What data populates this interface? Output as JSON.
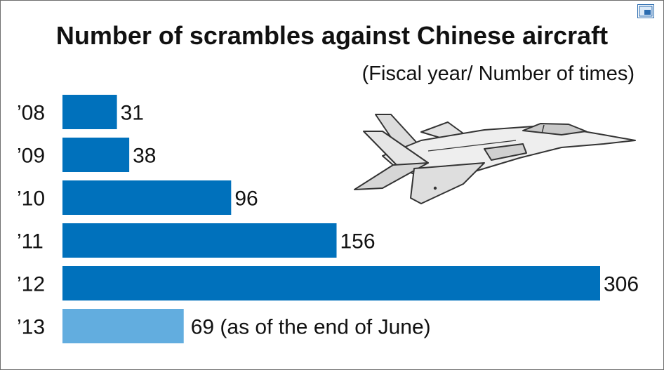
{
  "header": {
    "title": "Number of scrambles against Chinese aircraft",
    "subtitle": "(Fiscal year/ Number of times)"
  },
  "toolbar": {
    "expand_icon": "expand-icon"
  },
  "illustration": {
    "icon": "fighter-jet-icon"
  },
  "colors": {
    "bar": "#0071bc",
    "bar_partial": "#62addf",
    "text": "#111111"
  },
  "chart_data": {
    "type": "bar",
    "orientation": "horizontal",
    "title": "Number of scrambles against Chinese aircraft",
    "subtitle": "(Fiscal year/ Number of times)",
    "categories": [
      "’08",
      "’09",
      "’10",
      "’11",
      "’12",
      "’13"
    ],
    "values": [
      31,
      38,
      96,
      156,
      306,
      69
    ],
    "value_labels": [
      "31",
      "38",
      "96",
      "156",
      "306",
      "69 (as of the end of June)"
    ],
    "highlight": [
      false,
      false,
      false,
      false,
      false,
      true
    ],
    "xlim": [
      0,
      306
    ],
    "grid": false,
    "legend": "none"
  }
}
